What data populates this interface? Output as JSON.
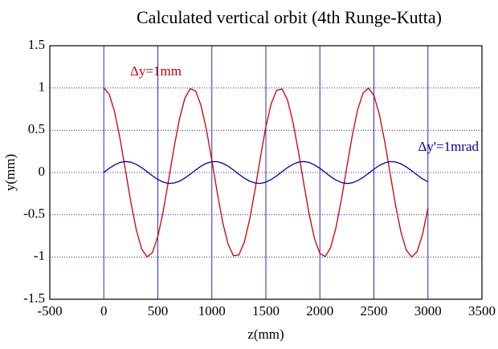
{
  "chart_data": {
    "type": "line",
    "title": "Calculated vertical orbit (4th Runge-Kutta)",
    "xlabel": "z(mm)",
    "ylabel": "y(mm)",
    "x": [
      0,
      50,
      100,
      150,
      200,
      250,
      300,
      350,
      400,
      450,
      500,
      550,
      600,
      650,
      700,
      750,
      800,
      850,
      900,
      950,
      1000,
      1050,
      1100,
      1150,
      1200,
      1250,
      1300,
      1350,
      1400,
      1450,
      1500,
      1550,
      1600,
      1650,
      1700,
      1750,
      1800,
      1850,
      1900,
      1950,
      2000,
      2050,
      2100,
      2150,
      2200,
      2250,
      2300,
      2350,
      2400,
      2450,
      2500,
      2550,
      2600,
      2650,
      2700,
      2750,
      2800,
      2850,
      2900,
      2950,
      3000
    ],
    "series": [
      {
        "name": "Δy=1mm",
        "color": "#cc0000",
        "values": [
          1,
          0.927,
          0.717,
          0.402,
          0.029,
          -0.349,
          -0.674,
          -0.904,
          -0.998,
          -0.947,
          -0.758,
          -0.458,
          -0.087,
          0.294,
          0.632,
          0.878,
          0.993,
          0.964,
          0.793,
          0.506,
          0.144,
          -0.238,
          -0.587,
          -0.849,
          -0.985,
          -0.976,
          -0.826,
          -0.555,
          -0.201,
          0.182,
          0.54,
          0.817,
          0.973,
          0.988,
          0.858,
          0.602,
          0.258,
          -0.125,
          -0.488,
          -0.782,
          -0.958,
          -0.995,
          -0.886,
          -0.646,
          -0.312,
          0.067,
          0.438,
          0.746,
          0.94,
          0.999,
          0.912,
          0.69,
          0.367,
          -0.009,
          -0.384,
          -0.703,
          -0.919,
          -1.0,
          -0.936,
          -0.734,
          -0.423
        ]
      },
      {
        "name": "Δy'=1mrad",
        "color": "#0000aa",
        "values": [
          0,
          0.049,
          0.09,
          0.119,
          0.13,
          0.122,
          0.097,
          0.058,
          0.01,
          -0.039,
          -0.083,
          -0.114,
          -0.129,
          -0.125,
          -0.103,
          -0.066,
          -0.02,
          0.03,
          0.075,
          0.109,
          0.128,
          0.128,
          0.109,
          0.075,
          0.03,
          -0.02,
          -0.066,
          -0.103,
          -0.125,
          -0.129,
          -0.114,
          -0.083,
          -0.039,
          0.01,
          0.058,
          0.097,
          0.122,
          0.13,
          0.119,
          0.09,
          0.049,
          0,
          -0.049,
          -0.09,
          -0.119,
          -0.13,
          -0.122,
          -0.097,
          -0.058,
          -0.01,
          0.039,
          0.083,
          0.114,
          0.129,
          0.125,
          0.103,
          0.066,
          0.02,
          -0.03,
          -0.075,
          -0.109
        ]
      }
    ],
    "xlim": [
      -500,
      3500
    ],
    "xticks": [
      -500,
      0,
      500,
      1000,
      1500,
      2000,
      2500,
      3000,
      3500
    ],
    "ylim": [
      -1.5,
      1.5
    ],
    "yticks": [
      -1.5,
      -1,
      -0.5,
      0,
      0.5,
      1,
      1.5
    ],
    "grid": true,
    "grid_color": "#2a2ad0"
  }
}
